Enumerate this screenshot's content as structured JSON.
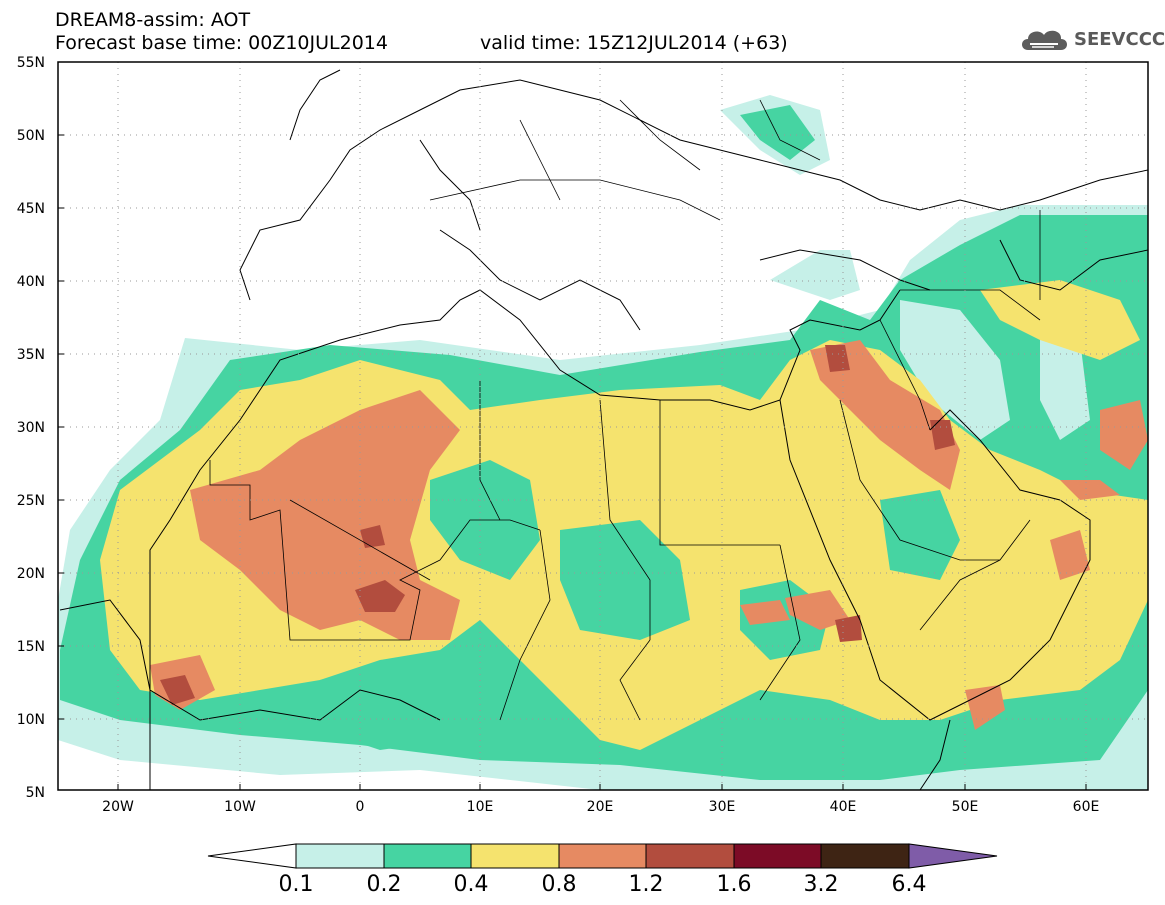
{
  "header": {
    "title": "DREAM8-assim: AOT",
    "base_time_label": "Forecast base time: 00Z10JUL2014",
    "valid_time_label": "valid time: 15Z12JUL2014 (+63)"
  },
  "logo": {
    "text": "SEEVCCC",
    "icon": "cloud-icon"
  },
  "map": {
    "lat_labels": [
      "55N",
      "50N",
      "45N",
      "40N",
      "35N",
      "30N",
      "25N",
      "20N",
      "15N",
      "10N",
      "5N"
    ],
    "lon_labels": [
      "20W",
      "10W",
      "0",
      "10E",
      "20E",
      "30E",
      "40E",
      "50E",
      "60E"
    ],
    "lon_range": [
      -25,
      65
    ],
    "lat_range": [
      5,
      55
    ],
    "graticule": "dotted"
  },
  "colorbar": {
    "labels": [
      "0.1",
      "0.2",
      "0.4",
      "0.8",
      "1.2",
      "1.6",
      "3.2",
      "6.4"
    ],
    "colors": [
      "#ffffff",
      "#c6f0e8",
      "#46d4a2",
      "#f5e36e",
      "#e68a62",
      "#b24d3e",
      "#7c0b26",
      "#3e2414",
      "#7f5ca8"
    ],
    "extend": "both"
  }
}
